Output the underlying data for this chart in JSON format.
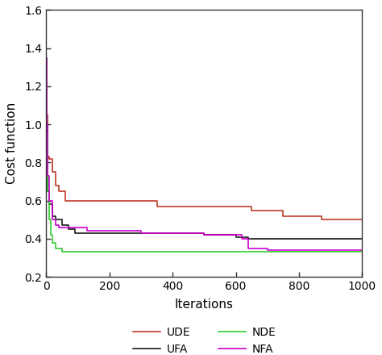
{
  "title": "",
  "xlabel": "Iterations",
  "ylabel": "Cost function",
  "xlim": [
    0,
    1000
  ],
  "ylim": [
    0.2,
    1.6
  ],
  "yticks": [
    0.2,
    0.4,
    0.6,
    0.8,
    1.0,
    1.2,
    1.4,
    1.6
  ],
  "xticks": [
    0,
    200,
    400,
    600,
    800,
    1000
  ],
  "series": {
    "UDE": {
      "color": "#c0392b",
      "x": [
        0,
        2,
        5,
        10,
        20,
        30,
        40,
        60,
        100,
        110,
        150,
        200,
        220,
        350,
        500,
        560,
        600,
        650,
        750,
        800,
        870,
        1000
      ],
      "y": [
        1.35,
        1.05,
        0.83,
        0.82,
        0.75,
        0.68,
        0.65,
        0.6,
        0.6,
        0.6,
        0.6,
        0.6,
        0.6,
        0.57,
        0.57,
        0.57,
        0.57,
        0.55,
        0.52,
        0.52,
        0.5,
        0.5
      ]
    },
    "UFA": {
      "color": "#1a1a1a",
      "x": [
        0,
        2,
        5,
        10,
        20,
        30,
        50,
        70,
        90,
        110,
        130,
        150,
        170,
        200,
        250,
        300,
        400,
        500,
        580,
        600,
        620,
        640,
        700,
        800,
        1000
      ],
      "y": [
        1.35,
        1.0,
        0.65,
        0.58,
        0.52,
        0.5,
        0.47,
        0.45,
        0.43,
        0.43,
        0.43,
        0.43,
        0.43,
        0.43,
        0.43,
        0.43,
        0.43,
        0.42,
        0.42,
        0.41,
        0.41,
        0.4,
        0.4,
        0.4,
        0.4
      ]
    },
    "NDE": {
      "color": "#33cc33",
      "x": [
        0,
        2,
        5,
        10,
        15,
        20,
        30,
        50,
        70,
        80,
        100,
        200,
        600,
        1000
      ],
      "y": [
        1.35,
        0.95,
        0.65,
        0.5,
        0.42,
        0.38,
        0.35,
        0.33,
        0.33,
        0.33,
        0.33,
        0.33,
        0.33,
        0.33
      ]
    },
    "NFA": {
      "color": "#cc00cc",
      "x": [
        0,
        2,
        5,
        10,
        20,
        30,
        40,
        50,
        70,
        90,
        110,
        130,
        150,
        200,
        300,
        400,
        500,
        580,
        600,
        620,
        640,
        700,
        800,
        1000
      ],
      "y": [
        1.35,
        1.0,
        0.73,
        0.6,
        0.5,
        0.47,
        0.46,
        0.46,
        0.46,
        0.46,
        0.46,
        0.44,
        0.44,
        0.44,
        0.43,
        0.43,
        0.42,
        0.42,
        0.42,
        0.4,
        0.35,
        0.34,
        0.34,
        0.34
      ]
    }
  },
  "legend_entries": [
    "UDE",
    "UFA",
    "NDE",
    "NFA"
  ],
  "background_color": "#ffffff",
  "figsize": [
    4.74,
    4.4
  ],
  "dpi": 100
}
